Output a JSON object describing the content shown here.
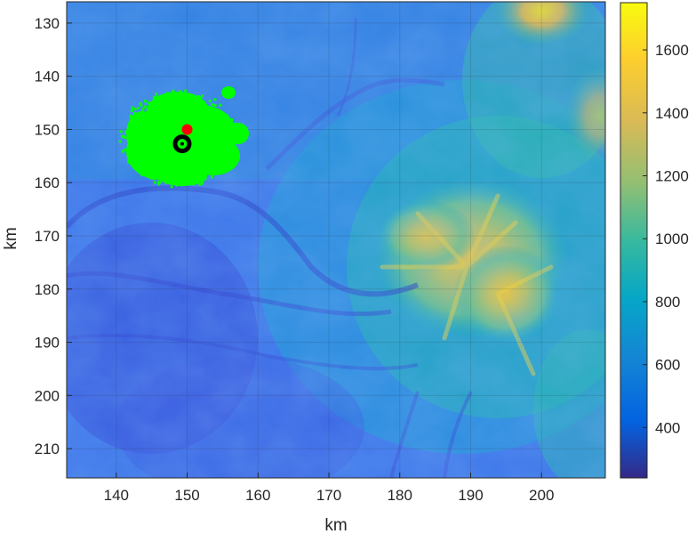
{
  "chart_data": {
    "type": "heatmap",
    "title": "",
    "xlabel": "km",
    "ylabel": "km",
    "xlim": [
      133,
      209
    ],
    "ylim": [
      126,
      215.5
    ],
    "y_reversed": true,
    "x_ticks": [
      140,
      150,
      160,
      170,
      180,
      190,
      200
    ],
    "x_tick_labels": [
      "140",
      "150",
      "160",
      "170",
      "180",
      "190",
      "200"
    ],
    "y_ticks": [
      130,
      140,
      150,
      160,
      170,
      180,
      190,
      200,
      210
    ],
    "y_tick_labels": [
      "130",
      "140",
      "150",
      "160",
      "170",
      "180",
      "190",
      "200",
      "210"
    ],
    "grid": true,
    "colormap": "parula",
    "colorbar": {
      "range": [
        240,
        1750
      ],
      "ticks": [
        400,
        600,
        800,
        1000,
        1200,
        1400,
        1600
      ],
      "tick_labels": [
        "400",
        "600",
        "800",
        "1000",
        "1200",
        "1400",
        "1600"
      ]
    },
    "overlays": {
      "green_cluster": {
        "color": "#00ff00",
        "center": [
          148.7,
          151.5
        ],
        "extent_x": [
          142,
          157
        ],
        "extent_y": [
          142.5,
          160
        ]
      },
      "red_point": {
        "x": 150,
        "y": 150,
        "color": "#ff0000"
      },
      "black_marker": {
        "x": 149.3,
        "y": 152.7,
        "color": "#000000"
      }
    }
  }
}
